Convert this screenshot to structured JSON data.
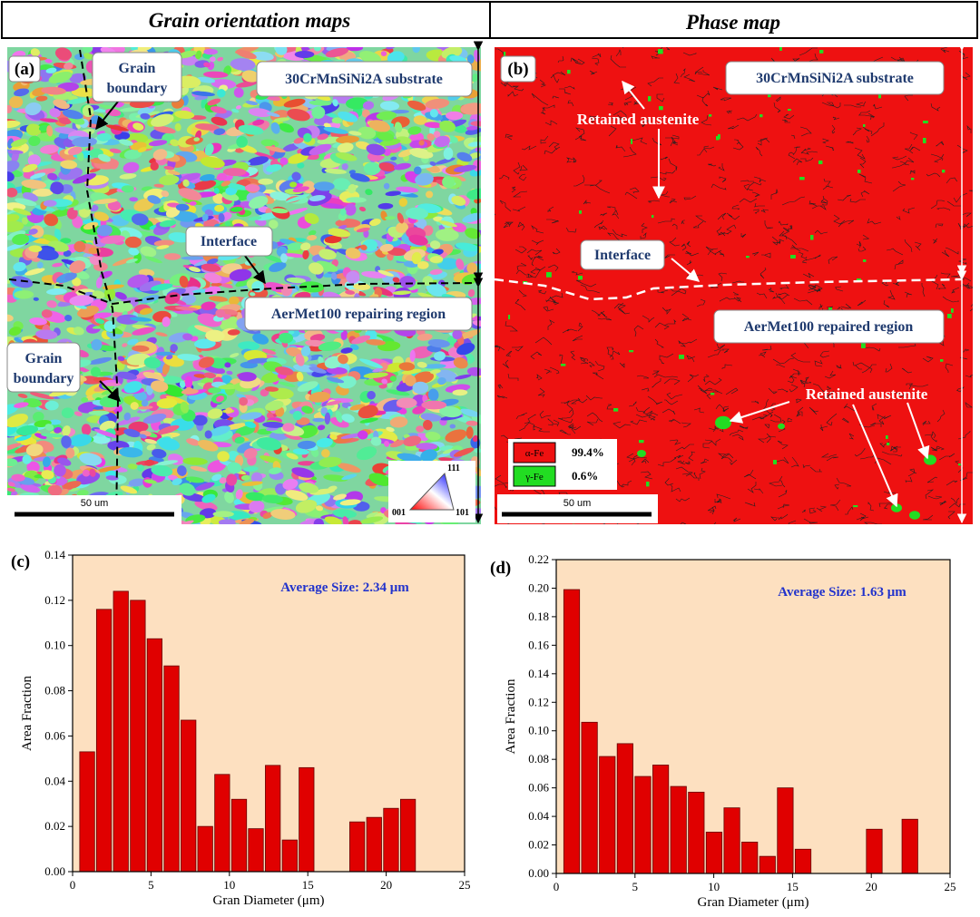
{
  "header": {
    "left": "Grain orientation maps",
    "right": "Phase map"
  },
  "panel_a": {
    "label": "(a)",
    "grain_boundary_top": [
      "Grain",
      "boundary"
    ],
    "substrate": "30CrMnSiNi2A substrate",
    "interface": "Interface",
    "region": "AerMet100 repairing region",
    "grain_boundary_bottom": [
      "Grain",
      "boundary"
    ],
    "scale_bar": "50 um",
    "ipf": [
      "111",
      "001",
      "101"
    ]
  },
  "panel_b": {
    "label": "(b)",
    "substrate": "30CrMnSiNi2A substrate",
    "retained": [
      "Retained austenite",
      "Retained austenite"
    ],
    "interface": "Interface",
    "region": "AerMet100 repaired region",
    "legend": [
      {
        "name": "α-Fe",
        "value": "99.4%",
        "color": "#ee1111"
      },
      {
        "name": "γ-Fe",
        "value": "0.6%",
        "color": "#22dd22"
      }
    ],
    "scale_bar": "50 um"
  },
  "chart_data": [
    {
      "type": "bar",
      "panel_label": "(c)",
      "annotation": "Average Size: 2.34 μm",
      "xlabel": "Gran Diameter (μm)",
      "ylabel": "Area Fraction",
      "color": "#e00000",
      "background": "#fde0c0",
      "x": [
        0.93,
        2.0,
        3.08,
        4.16,
        5.23,
        6.31,
        7.39,
        8.46,
        9.54,
        10.62,
        11.69,
        12.77,
        13.85,
        14.92,
        18.15,
        19.23,
        20.31,
        21.39
      ],
      "values": [
        0.053,
        0.116,
        0.124,
        0.12,
        0.103,
        0.091,
        0.067,
        0.02,
        0.043,
        0.032,
        0.019,
        0.047,
        0.014,
        0.046,
        0.022,
        0.024,
        0.028,
        0.032
      ],
      "xlim": [
        0,
        25
      ],
      "xticks": [
        0,
        5,
        10,
        15,
        20,
        25
      ],
      "ylim": [
        0,
        0.14
      ],
      "yticks": [
        {
          "value": 0,
          "label": "0.00"
        },
        {
          "value": 0.02,
          "label": "0.02"
        },
        {
          "value": 0.04,
          "label": "0.04"
        },
        {
          "value": 0.06,
          "label": "0.06"
        },
        {
          "value": 0.08,
          "label": "0.08"
        },
        {
          "value": 0.1,
          "label": "0.10"
        },
        {
          "value": 0.12,
          "label": "0.12"
        },
        {
          "value": 0.14,
          "label": "0.14"
        }
      ]
    },
    {
      "type": "bar",
      "panel_label": "(d)",
      "annotation": "Average Size: 1.63 μm",
      "xlabel": "Gran Diameter (μm)",
      "ylabel": "Area Fraction",
      "color": "#e00000",
      "background": "#fde0c0",
      "x": [
        0.98,
        2.11,
        3.24,
        4.37,
        5.5,
        6.63,
        7.76,
        8.89,
        10.02,
        11.15,
        12.28,
        13.41,
        14.54,
        15.67,
        20.19,
        22.45
      ],
      "values": [
        0.199,
        0.106,
        0.082,
        0.091,
        0.068,
        0.076,
        0.061,
        0.057,
        0.029,
        0.046,
        0.022,
        0.012,
        0.06,
        0.017,
        0.031,
        0.038
      ],
      "xlim": [
        0,
        25
      ],
      "xticks": [
        0,
        5,
        10,
        15,
        20,
        25
      ],
      "ylim": [
        0,
        0.22
      ],
      "yticks": [
        {
          "value": 0,
          "label": "0.00"
        },
        {
          "value": 0.02,
          "label": "0.02"
        },
        {
          "value": 0.04,
          "label": "0.04"
        },
        {
          "value": 0.06,
          "label": "0.06"
        },
        {
          "value": 0.08,
          "label": "0.08"
        },
        {
          "value": 0.1,
          "label": "0.10"
        },
        {
          "value": 0.12,
          "label": "0.12"
        },
        {
          "value": 0.14,
          "label": "0.14"
        },
        {
          "value": 0.16,
          "label": "0.16"
        },
        {
          "value": 0.18,
          "label": "0.18"
        },
        {
          "value": 0.2,
          "label": "0.20"
        },
        {
          "value": 0.22,
          "label": "0.22"
        }
      ]
    }
  ]
}
